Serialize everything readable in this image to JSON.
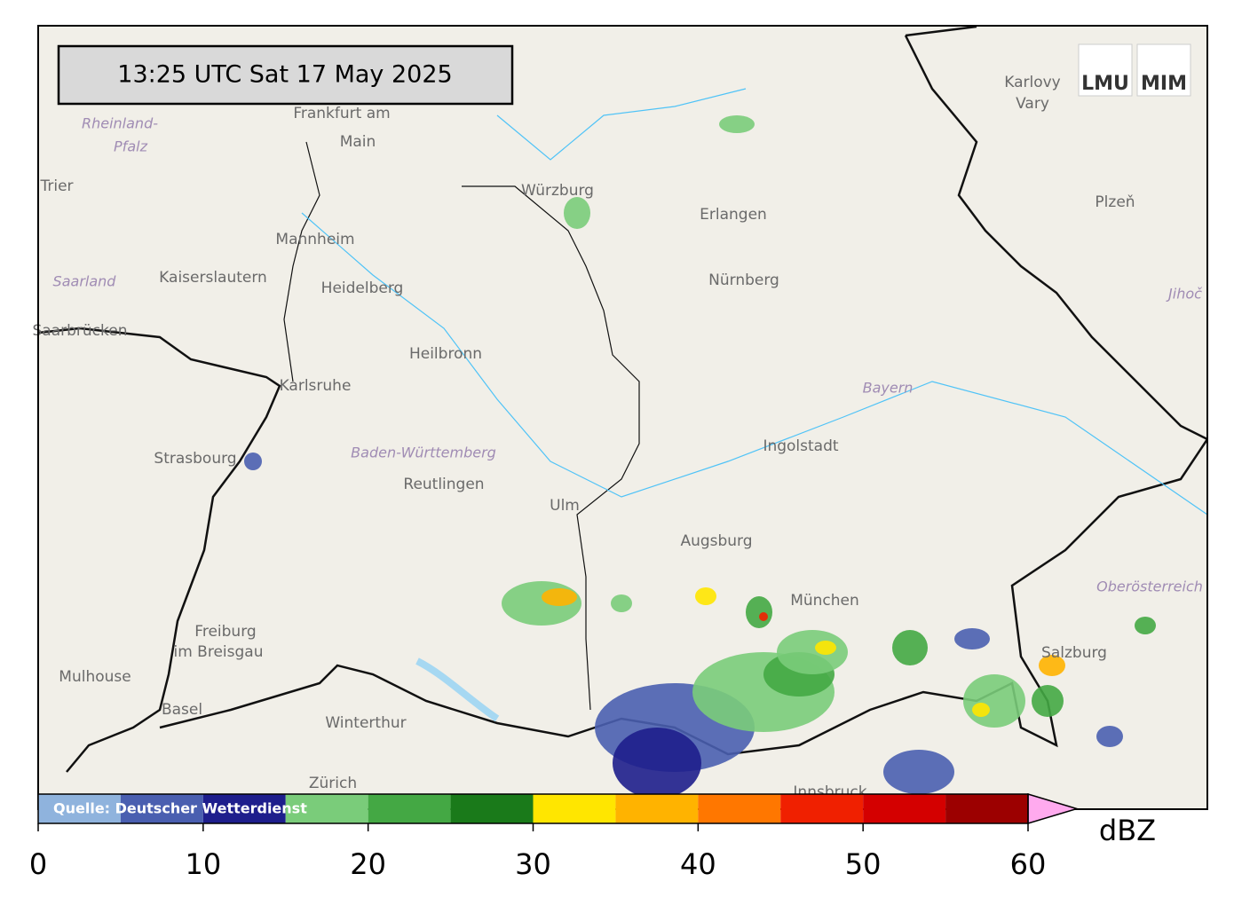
{
  "header": {
    "timestamp": "13:25 UTC  Sat 17 May 2025",
    "logo_left": "LMU",
    "logo_right": "MIM"
  },
  "source": "Quelle: Deutscher Wetterdienst",
  "map_labels": [
    "Frankfurt am",
    "Main",
    "Würzburg",
    "Erlangen",
    "Nürnberg",
    "Mannheim",
    "Kaiserslautern",
    "Heidelberg",
    "Saarbrücken",
    "Heilbronn",
    "Karlsruhe",
    "Strasbourg",
    "Reutlingen",
    "Ulm",
    "Augsburg",
    "Ingolstadt",
    "München",
    "Freiburg",
    "im Breisgau",
    "Mulhouse",
    "Basel",
    "Winterthur",
    "Zürich",
    "Salzburg",
    "Karlovy",
    "Vary",
    "Plzeň",
    "Trier",
    "Innsbruck"
  ],
  "region_labels": [
    "Rheinland-",
    "Pfalz",
    "Saarland",
    "Baden-Württemberg",
    "Bayern",
    "Oberösterreich",
    "Jihoč"
  ],
  "colorbar": {
    "label": "dBZ",
    "bounds": [
      0,
      5,
      10,
      15,
      20,
      25,
      30,
      35,
      40,
      45,
      50,
      55,
      60
    ],
    "colors": [
      "#8fb3dd",
      "#4a5fb0",
      "#1e1e8c",
      "#7acc7a",
      "#44a844",
      "#1a7a1a",
      "#ffe600",
      "#ffb300",
      "#ff7700",
      "#f02000",
      "#d40000",
      "#9c0000"
    ],
    "extend_color": "#ffaaee",
    "ticks": [
      0,
      10,
      20,
      30,
      40,
      50,
      60
    ]
  }
}
